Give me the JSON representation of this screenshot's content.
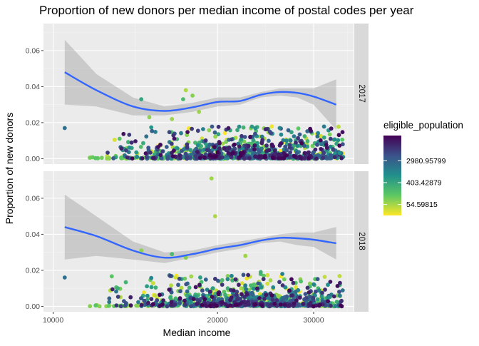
{
  "chart_data": {
    "type": "scatter",
    "title": "Proportion of new donors per median income of postal codes per year",
    "xlabel": "Median income",
    "ylabel": "Proportion of new donors",
    "x_scale": "log10",
    "xlim": [
      9600,
      35500
    ],
    "ylim": [
      -0.003,
      0.075
    ],
    "x_ticks": [
      10000,
      20000,
      30000
    ],
    "x_tick_labels": [
      "10000",
      "20000",
      "30000"
    ],
    "y_ticks": [
      0,
      0.02,
      0.04,
      0.06
    ],
    "y_tick_labels": [
      "0.00",
      "0.02",
      "0.04",
      "0.06"
    ],
    "grid": true,
    "smoother": "loess trend line with confidence band",
    "legend": {
      "title": "eligible_population",
      "position": "right",
      "scale": "log",
      "labels": [
        "2980.95799",
        "403.42879",
        "54.59815"
      ],
      "label_values": [
        2980.95799,
        403.42879,
        54.59815
      ],
      "range": [
        20,
        30000
      ],
      "colors": [
        "#440154",
        "#3b528b",
        "#21908c",
        "#5dc863",
        "#fde725"
      ]
    },
    "panels": [
      {
        "facet_label": "2017",
        "trend_x": [
          10500,
          12000,
          14000,
          16000,
          18000,
          20000,
          22000,
          24000,
          26000,
          28000,
          30000,
          33000
        ],
        "trend_y": [
          0.048,
          0.038,
          0.029,
          0.0265,
          0.0285,
          0.0315,
          0.032,
          0.0355,
          0.037,
          0.0365,
          0.0345,
          0.03
        ],
        "band_upper": [
          0.066,
          0.047,
          0.034,
          0.029,
          0.031,
          0.034,
          0.034,
          0.037,
          0.039,
          0.039,
          0.039,
          0.044
        ],
        "band_lower": [
          0.03,
          0.029,
          0.024,
          0.024,
          0.026,
          0.029,
          0.03,
          0.034,
          0.035,
          0.034,
          0.03,
          0.016
        ],
        "highlight_points": [
          {
            "x": 10500,
            "y": 0.017,
            "pop": 2000
          },
          {
            "x": 16500,
            "y": 0.022,
            "pop": 60
          },
          {
            "x": 14500,
            "y": 0.033,
            "pop": 400
          },
          {
            "x": 17500,
            "y": 0.038,
            "pop": 50
          },
          {
            "x": 18000,
            "y": 0.035,
            "pop": 80
          },
          {
            "x": 17300,
            "y": 0.033,
            "pop": 200
          },
          {
            "x": 15000,
            "y": 0.023,
            "pop": 70
          },
          {
            "x": 18500,
            "y": 0.026,
            "pop": 60
          },
          {
            "x": 26000,
            "y": 0.017,
            "pop": 1000
          },
          {
            "x": 31000,
            "y": 0.008,
            "pop": 1500
          },
          {
            "x": 33500,
            "y": 0.003,
            "pop": 800
          }
        ]
      },
      {
        "facet_label": "2018",
        "trend_x": [
          10500,
          12000,
          14000,
          16000,
          18000,
          20000,
          22000,
          24000,
          26000,
          28000,
          30000,
          33000
        ],
        "trend_y": [
          0.044,
          0.039,
          0.031,
          0.027,
          0.029,
          0.032,
          0.034,
          0.0365,
          0.038,
          0.0378,
          0.037,
          0.035
        ],
        "band_upper": [
          0.062,
          0.05,
          0.036,
          0.03,
          0.031,
          0.034,
          0.036,
          0.038,
          0.04,
          0.041,
          0.041,
          0.044
        ],
        "band_lower": [
          0.026,
          0.028,
          0.026,
          0.024,
          0.027,
          0.03,
          0.032,
          0.035,
          0.036,
          0.034,
          0.033,
          0.026
        ],
        "highlight_points": [
          {
            "x": 10500,
            "y": 0.016,
            "pop": 2000
          },
          {
            "x": 19500,
            "y": 0.071,
            "pop": 60
          },
          {
            "x": 19800,
            "y": 0.05,
            "pop": 50
          },
          {
            "x": 14500,
            "y": 0.031,
            "pop": 70
          },
          {
            "x": 16500,
            "y": 0.029,
            "pop": 200
          },
          {
            "x": 17500,
            "y": 0.027,
            "pop": 80
          },
          {
            "x": 22500,
            "y": 0.028,
            "pop": 60
          },
          {
            "x": 24000,
            "y": 0.019,
            "pop": 300
          },
          {
            "x": 32000,
            "y": 0.005,
            "pop": 900
          },
          {
            "x": 33500,
            "y": 0.006,
            "pop": 1500
          }
        ]
      }
    ]
  }
}
